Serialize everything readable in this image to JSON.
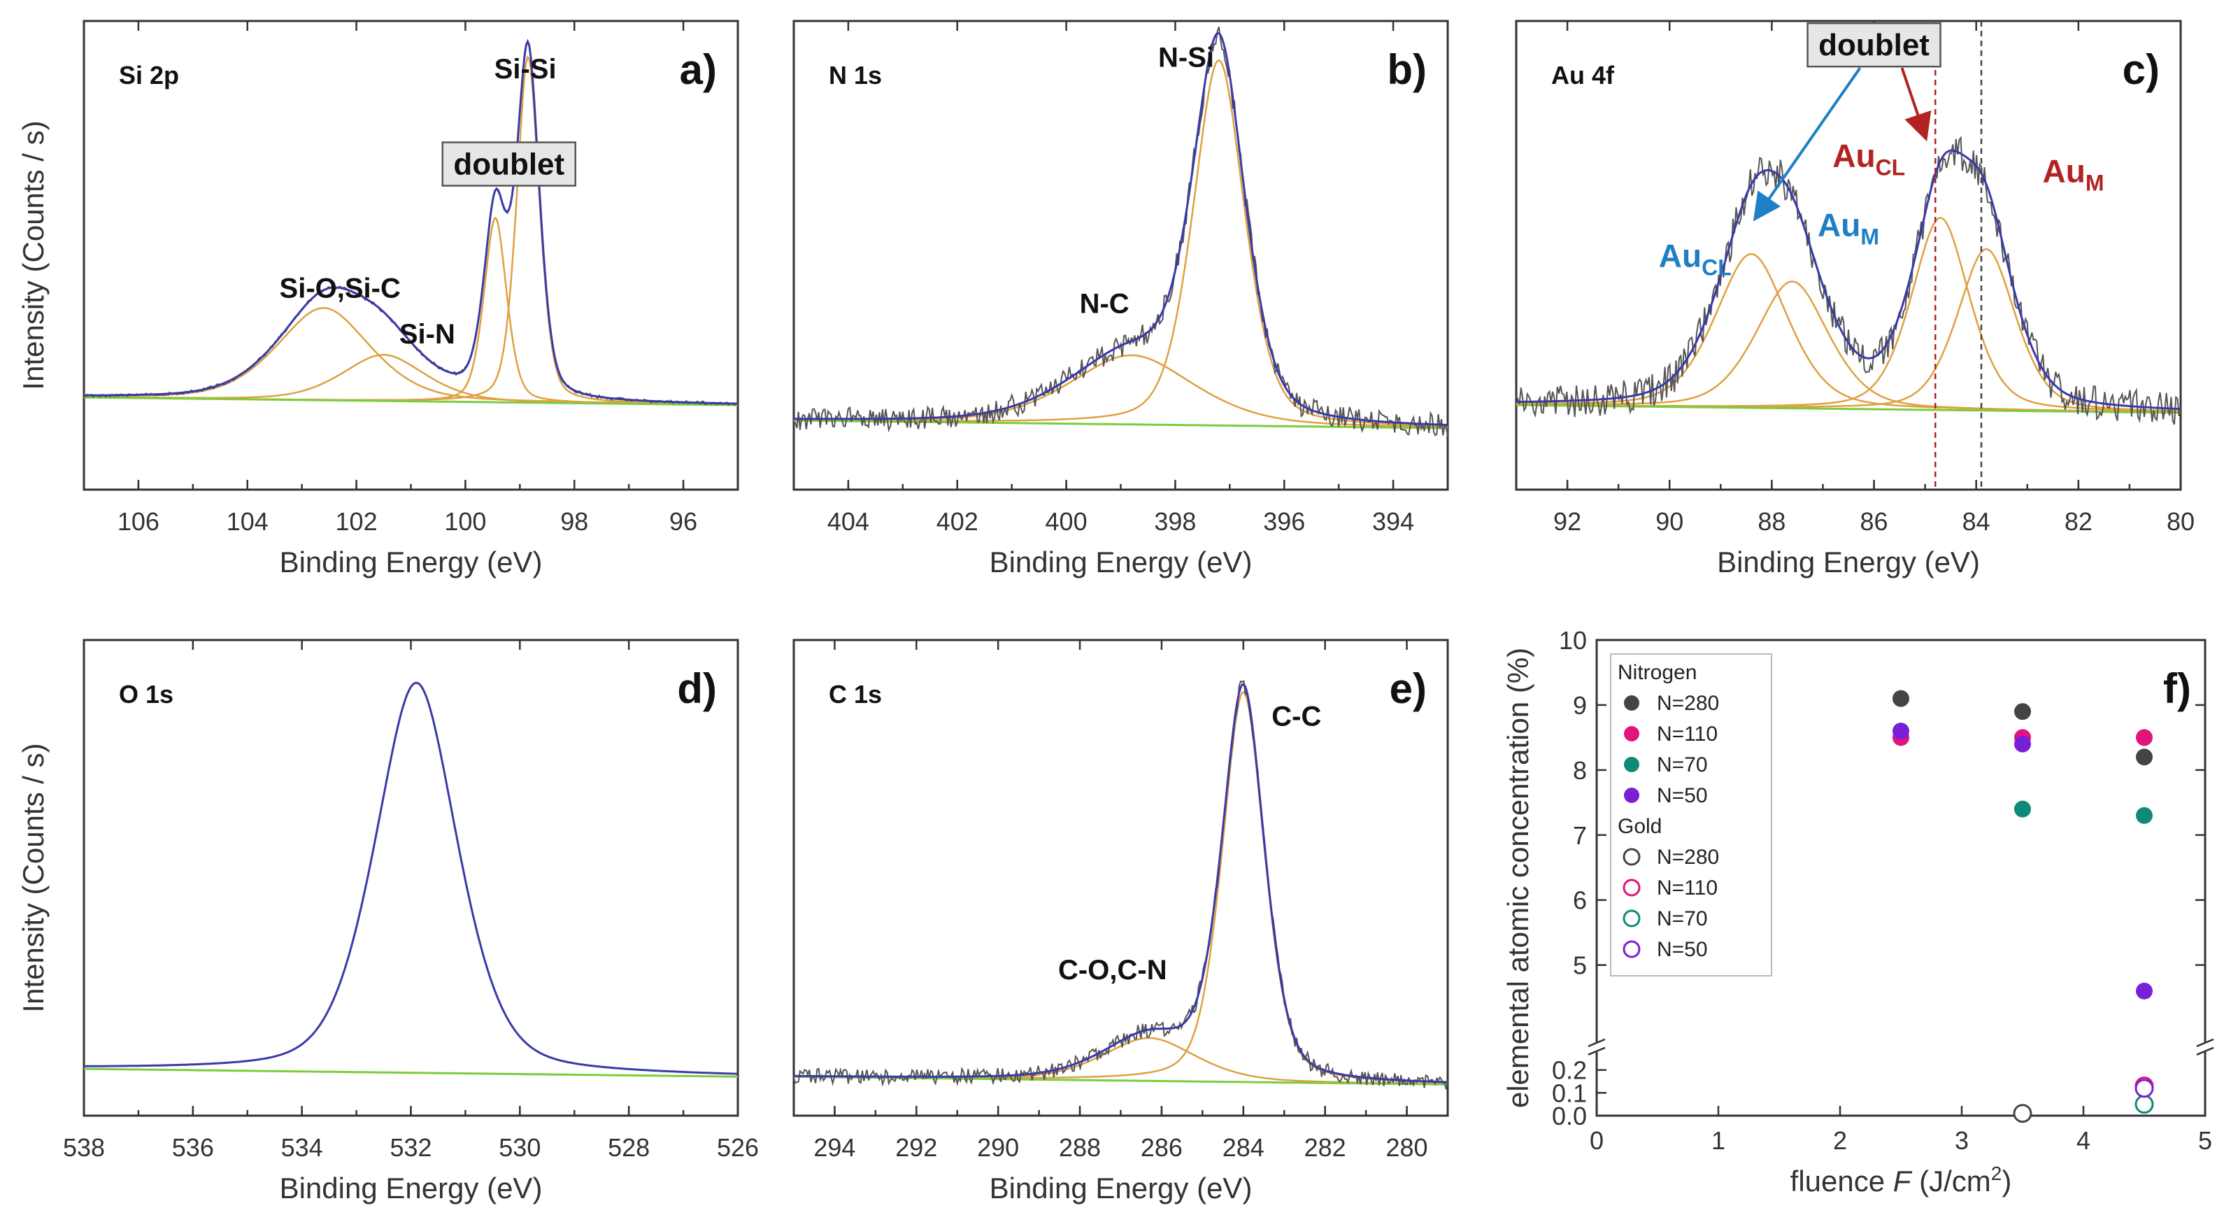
{
  "colors": {
    "raw": "#555555",
    "envelope": "#3a3aa8",
    "component": "#e0a040",
    "background": "#7ccc3c",
    "au_blue": "#1f7fc4",
    "au_red": "#b32222"
  },
  "chart_data": [
    {
      "id": "a",
      "type": "line",
      "panel_letter": "a)",
      "title": "Si 2p",
      "xlabel": "Binding Energy (eV)",
      "ylabel": "Intensity (Counts / s)",
      "xlim": [
        107,
        95
      ],
      "xticks": [
        106,
        104,
        102,
        100,
        98,
        96
      ],
      "baseline": 0.22,
      "noise": 0.004,
      "peaks": [
        {
          "center": 102.6,
          "height": 0.24,
          "width": 0.9
        },
        {
          "center": 101.5,
          "height": 0.12,
          "width": 0.8
        },
        {
          "center": 99.45,
          "height": 0.48,
          "width": 0.22
        },
        {
          "center": 98.85,
          "height": 0.9,
          "width": 0.22
        }
      ],
      "labels": [
        {
          "text": "Si-Si",
          "x": 98.9,
          "y": 1.07
        },
        {
          "text": "Si-O,Si-C",
          "x": 102.3,
          "y": 0.5
        },
        {
          "text": "Si-N",
          "x": 100.7,
          "y": 0.38
        }
      ],
      "boxlabel": {
        "text": "doublet",
        "x": 99.2,
        "y": 0.82
      }
    },
    {
      "id": "b",
      "type": "line",
      "panel_letter": "b)",
      "title": "N 1s",
      "xlabel": "Binding Energy (eV)",
      "ylabel": "",
      "xlim": [
        405,
        393
      ],
      "xticks": [
        404,
        402,
        400,
        398,
        396,
        394
      ],
      "baseline": 0.16,
      "noise": 0.03,
      "peaks": [
        {
          "center": 398.8,
          "height": 0.18,
          "width": 1.2
        },
        {
          "center": 397.2,
          "height": 0.95,
          "width": 0.5
        }
      ],
      "labels": [
        {
          "text": "N-Si",
          "x": 397.8,
          "y": 1.1
        },
        {
          "text": "N-C",
          "x": 399.3,
          "y": 0.46
        }
      ]
    },
    {
      "id": "c",
      "type": "line",
      "panel_letter": "c)",
      "title": "Au 4f",
      "xlabel": "Binding Energy (eV)",
      "ylabel": "",
      "xlim": [
        93,
        80
      ],
      "xticks": [
        92,
        90,
        88,
        86,
        84,
        82,
        80
      ],
      "baseline": 0.2,
      "noise": 0.045,
      "peaks": [
        {
          "center": 88.4,
          "height": 0.4,
          "width": 0.75
        },
        {
          "center": 87.6,
          "height": 0.33,
          "width": 0.75
        },
        {
          "center": 84.7,
          "height": 0.5,
          "width": 0.6
        },
        {
          "center": 83.8,
          "height": 0.42,
          "width": 0.6
        }
      ],
      "vlines": [
        84.8,
        83.9
      ],
      "au_labels": [
        {
          "main": "Au",
          "sub": "CL",
          "x": 89.5,
          "y": 0.58,
          "color": "au_blue"
        },
        {
          "main": "Au",
          "sub": "M",
          "x": 86.5,
          "y": 0.66,
          "color": "au_blue"
        },
        {
          "main": "Au",
          "sub": "CL",
          "x": 86.1,
          "y": 0.84,
          "color": "au_red"
        },
        {
          "main": "Au",
          "sub": "M",
          "x": 82.1,
          "y": 0.8,
          "color": "au_red"
        }
      ],
      "boxlabel": {
        "text": "doublet",
        "x": 86.0,
        "y": 1.13
      }
    },
    {
      "id": "d",
      "type": "line",
      "panel_letter": "d)",
      "title": "O 1s",
      "xlabel": "Binding Energy (eV)",
      "ylabel": "Intensity (Counts / s)",
      "xlim": [
        538,
        526
      ],
      "xticks": [
        538,
        536,
        534,
        532,
        530,
        528,
        526
      ],
      "baseline": 0.1,
      "noise": 0.0,
      "peaks": [
        {
          "center": 531.9,
          "height": 1.0,
          "width": 0.8
        }
      ],
      "labels": []
    },
    {
      "id": "e",
      "type": "line",
      "panel_letter": "e)",
      "title": "C 1s",
      "xlabel": "Binding Energy (eV)",
      "ylabel": "",
      "xlim": [
        295,
        279
      ],
      "xticks": [
        294,
        292,
        290,
        288,
        286,
        284,
        282,
        280
      ],
      "baseline": 0.08,
      "noise": 0.02,
      "peaks": [
        {
          "center": 286.3,
          "height": 0.11,
          "width": 1.2
        },
        {
          "center": 284.0,
          "height": 1.0,
          "width": 0.55
        }
      ],
      "labels": [
        {
          "text": "C-C",
          "x": 282.7,
          "y": 1.0
        },
        {
          "text": "C-O,C-N",
          "x": 287.2,
          "y": 0.35
        }
      ]
    },
    {
      "id": "f",
      "type": "scatter",
      "panel_letter": "f)",
      "xlabel": "fluence F (J/cm²)",
      "xlabel_prefix": "fluence ",
      "xlabel_var": "F",
      "xlabel_units": " (J/cm",
      "xlabel_sup": "2",
      "xlabel_close": ")",
      "ylabel": "elemental atomic concentration (%)",
      "xlim": [
        0,
        5
      ],
      "xticks": [
        0,
        1,
        2,
        3,
        4,
        5
      ],
      "upper_ylim": [
        4,
        10
      ],
      "upper_yticks": [
        5,
        6,
        7,
        8,
        9,
        10
      ],
      "lower_ylim": [
        0,
        0.25
      ],
      "lower_yticks": [
        0.0,
        0.1,
        0.2
      ],
      "legend": {
        "groups": [
          {
            "title": "Nitrogen",
            "entries": [
              {
                "label": "N=280",
                "color": "#444444",
                "filled": true
              },
              {
                "label": "N=110",
                "color": "#e0147a",
                "filled": true
              },
              {
                "label": "N=70",
                "color": "#0f8a78",
                "filled": true
              },
              {
                "label": "N=50",
                "color": "#7a1fd8",
                "filled": true
              }
            ]
          },
          {
            "title": "Gold",
            "entries": [
              {
                "label": "N=280",
                "color": "#444444",
                "filled": false
              },
              {
                "label": "N=110",
                "color": "#e0147a",
                "filled": false
              },
              {
                "label": "N=70",
                "color": "#0f8a78",
                "filled": false
              },
              {
                "label": "N=50",
                "color": "#7a1fd8",
                "filled": false
              }
            ]
          }
        ]
      },
      "series": [
        {
          "name": "Nitrogen N=280",
          "color": "#444444",
          "filled": true,
          "points": [
            [
              2.5,
              9.1
            ],
            [
              3.5,
              8.9
            ],
            [
              4.5,
              8.2
            ]
          ]
        },
        {
          "name": "Nitrogen N=110",
          "color": "#e0147a",
          "filled": true,
          "points": [
            [
              2.5,
              8.5
            ],
            [
              3.5,
              8.5
            ],
            [
              4.5,
              8.5
            ]
          ]
        },
        {
          "name": "Nitrogen N=70",
          "color": "#0f8a78",
          "filled": true,
          "points": [
            [
              3.5,
              7.4
            ],
            [
              4.5,
              7.3
            ]
          ]
        },
        {
          "name": "Nitrogen N=50",
          "color": "#7a1fd8",
          "filled": true,
          "points": [
            [
              2.5,
              8.6
            ],
            [
              3.5,
              8.4
            ],
            [
              4.5,
              4.6
            ]
          ]
        },
        {
          "name": "Gold N=280",
          "color": "#444444",
          "filled": false,
          "points": [
            [
              3.5,
              0.01
            ]
          ]
        },
        {
          "name": "Gold N=110",
          "color": "#e0147a",
          "filled": false,
          "points": [
            [
              4.5,
              0.13
            ]
          ]
        },
        {
          "name": "Gold N=70",
          "color": "#0f8a78",
          "filled": false,
          "points": [
            [
              4.5,
              0.05
            ]
          ]
        },
        {
          "name": "Gold N=50",
          "color": "#7a1fd8",
          "filled": false,
          "points": [
            [
              4.5,
              0.12
            ]
          ]
        }
      ]
    }
  ]
}
